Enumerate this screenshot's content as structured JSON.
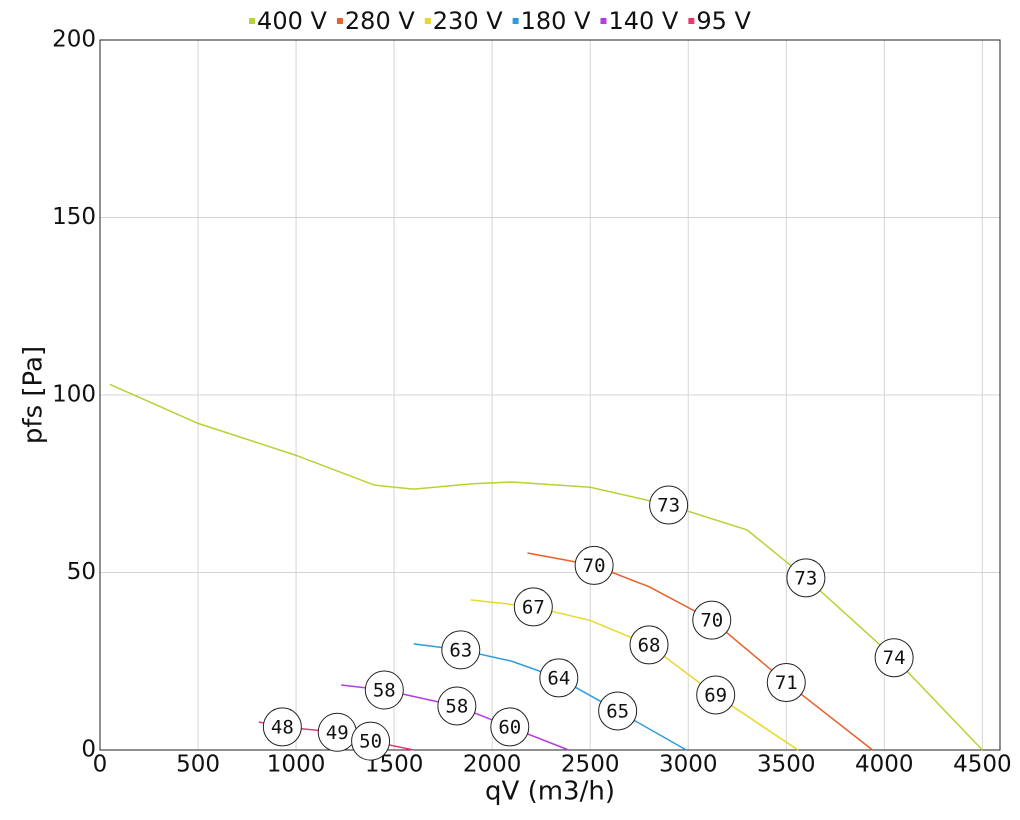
{
  "chart_data": {
    "type": "line",
    "x_label": "qV (m3/h)",
    "y_label": "pfs [Pa]",
    "xlim": [
      0,
      4590
    ],
    "ylim": [
      0,
      200
    ],
    "xticks": [
      0,
      500,
      1000,
      1500,
      2000,
      2500,
      3000,
      3500,
      4000,
      4500
    ],
    "yticks": [
      0,
      50,
      100,
      150,
      200
    ],
    "grid": true,
    "legend": "top",
    "series": [
      {
        "name": "400 V",
        "color": "#b5d334",
        "x": [
          50,
          500,
          1000,
          1400,
          1600,
          1900,
          2100,
          2500,
          2900,
          3300,
          3600,
          4050,
          4500
        ],
        "values": [
          103,
          92,
          83,
          74.6,
          73.5,
          75,
          75.5,
          74,
          69,
          62,
          48.5,
          26,
          0
        ],
        "point_labels": {
          "x": [
            2900,
            3600,
            4050
          ],
          "y": [
            69,
            48.5,
            26
          ],
          "text": [
            73,
            73,
            74
          ]
        }
      },
      {
        "name": "280 V",
        "color": "#e8602c",
        "x": [
          2180,
          2520,
          2800,
          3120,
          3500,
          3940
        ],
        "values": [
          55.5,
          52,
          46,
          36.6,
          19,
          0
        ],
        "point_labels": {
          "x": [
            2520,
            3120,
            3500
          ],
          "y": [
            52,
            36.6,
            19
          ],
          "text": [
            70,
            70,
            71
          ]
        }
      },
      {
        "name": "230 V",
        "color": "#e8d82a",
        "x": [
          1890,
          2210,
          2500,
          2800,
          3140,
          3560
        ],
        "values": [
          42.3,
          40.3,
          36.5,
          29.6,
          15.5,
          0
        ],
        "point_labels": {
          "x": [
            2210,
            2800,
            3140
          ],
          "y": [
            40.3,
            29.6,
            15.5
          ],
          "text": [
            67,
            68,
            69
          ]
        }
      },
      {
        "name": "180 V",
        "color": "#2b9ce0",
        "x": [
          1600,
          1840,
          2100,
          2340,
          2640,
          2990
        ],
        "values": [
          29.9,
          28.2,
          25,
          20.3,
          11,
          0
        ],
        "point_labels": {
          "x": [
            1840,
            2340,
            2640
          ],
          "y": [
            28.2,
            20.3,
            11
          ],
          "text": [
            63,
            64,
            65
          ]
        }
      },
      {
        "name": "140 V",
        "color": "#b33de0",
        "x": [
          1230,
          1450,
          1820,
          2090,
          2390
        ],
        "values": [
          18.3,
          16.9,
          12.4,
          6.5,
          0
        ],
        "point_labels": {
          "x": [
            1450,
            1820,
            2090
          ],
          "y": [
            16.9,
            12.4,
            6.5
          ],
          "text": [
            58,
            58,
            60
          ]
        }
      },
      {
        "name": "95 V",
        "color": "#e83a6e",
        "x": [
          810,
          930,
          1210,
          1380,
          1600
        ],
        "values": [
          7.9,
          6.5,
          5,
          2.5,
          0
        ],
        "point_labels": {
          "x": [
            930,
            1210,
            1380
          ],
          "y": [
            6.5,
            5,
            2.5
          ],
          "text": [
            48,
            49,
            50
          ]
        }
      }
    ]
  }
}
